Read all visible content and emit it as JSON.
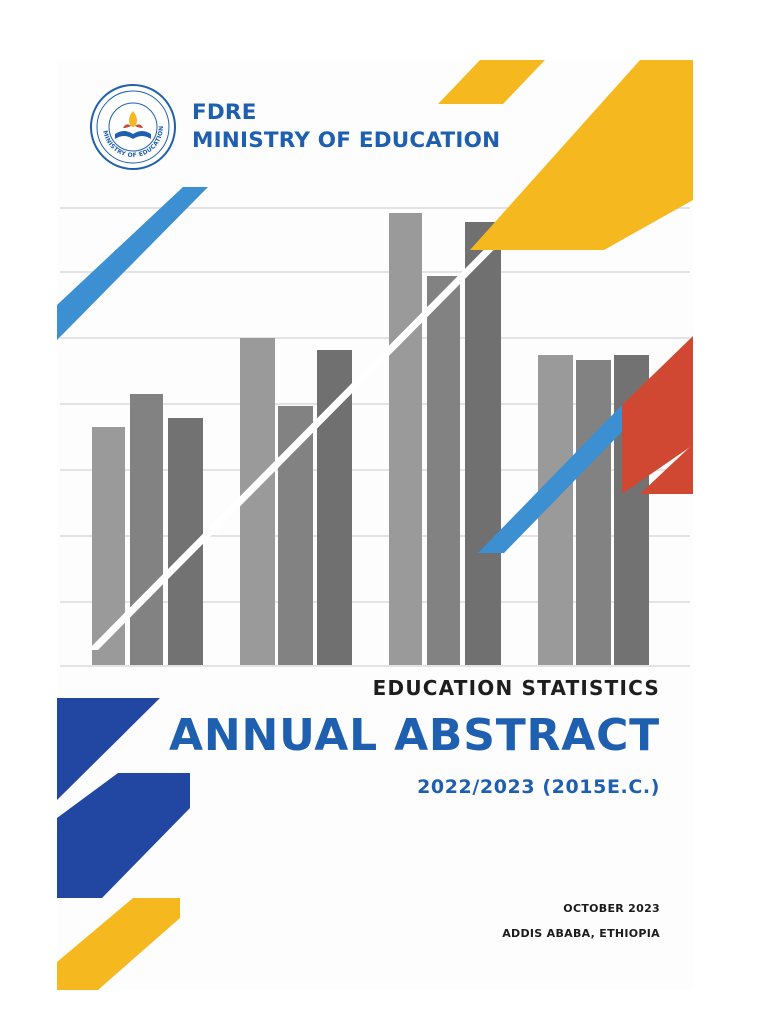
{
  "header": {
    "org_line1": "FDRE",
    "org_line2": "MINISTRY OF EDUCATION",
    "seal_ring_text": "MINISTRY OF EDUCATION"
  },
  "title": {
    "kicker": "EDUCATION STATISTICS",
    "main": "ANNUAL ABSTRACT",
    "year": "2022/2023 (2015E.C.)"
  },
  "footer": {
    "date": "OCTOBER 2023",
    "place": "ADDIS ABABA, ETHIOPIA"
  },
  "colors": {
    "brand_blue": "#1f5fb0",
    "dark_blue": "#2147a3",
    "light_blue": "#3c8fd0",
    "yellow": "#f5b91f",
    "red": "#d04832",
    "bar_light": "#9a9a9a",
    "bar_mid": "#828282",
    "bar_dark": "#6e6e6e"
  },
  "decorative_chart": {
    "groups": [
      {
        "values": [
          36,
          41,
          37
        ]
      },
      {
        "values": [
          49,
          39,
          47
        ]
      },
      {
        "values": [
          68,
          59,
          67
        ]
      },
      {
        "values": [
          46,
          45,
          46
        ]
      }
    ]
  }
}
